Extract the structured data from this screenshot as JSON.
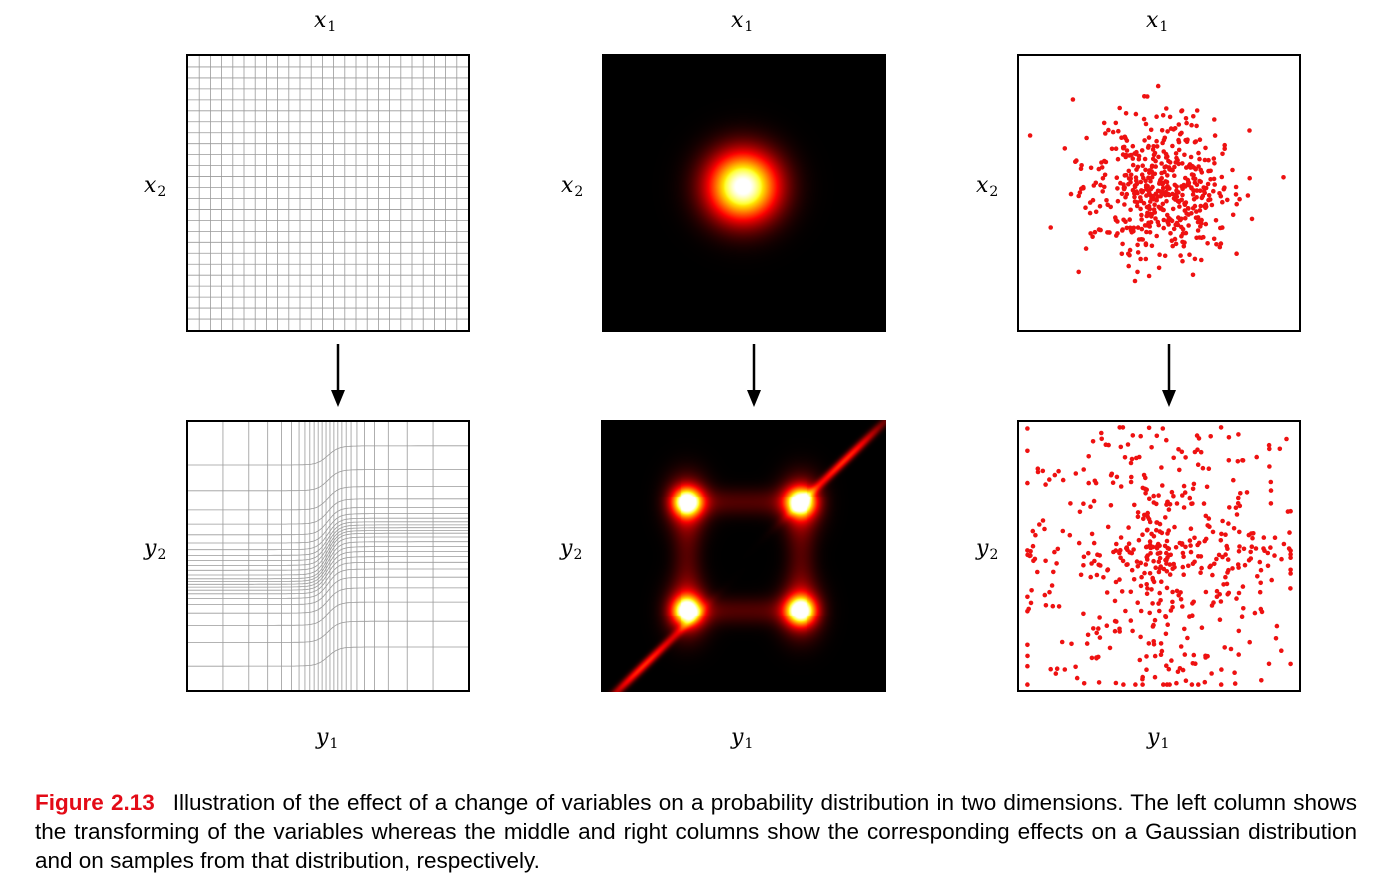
{
  "columns": [
    {
      "top_x_label": "x",
      "top_x_sub": "1",
      "top_y_label": "x",
      "top_y_sub": "2",
      "bottom_x_label": "y",
      "bottom_x_sub": "1",
      "bottom_y_label": "y",
      "bottom_y_sub": "2"
    },
    {
      "top_x_label": "x",
      "top_x_sub": "1",
      "top_y_label": "x",
      "top_y_sub": "2",
      "bottom_x_label": "y",
      "bottom_x_sub": "1",
      "bottom_y_label": "y",
      "bottom_y_sub": "2"
    },
    {
      "top_x_label": "x",
      "top_x_sub": "1",
      "top_y_label": "x",
      "top_y_sub": "2",
      "bottom_x_label": "y",
      "bottom_x_sub": "1",
      "bottom_y_label": "y",
      "bottom_y_sub": "2"
    }
  ],
  "colors": {
    "accent": "#e30b17",
    "points": "#ee1111",
    "background_dark": "#000000"
  },
  "caption": {
    "label": "Figure 2.13",
    "text": "Illustration of the effect of a change of variables on a probability distribution in two dimensions. The left column shows the transforming of the variables whereas the middle and right columns show the corresponding effects on a Gaussian distribution and on samples from that distribution, respectively."
  }
}
